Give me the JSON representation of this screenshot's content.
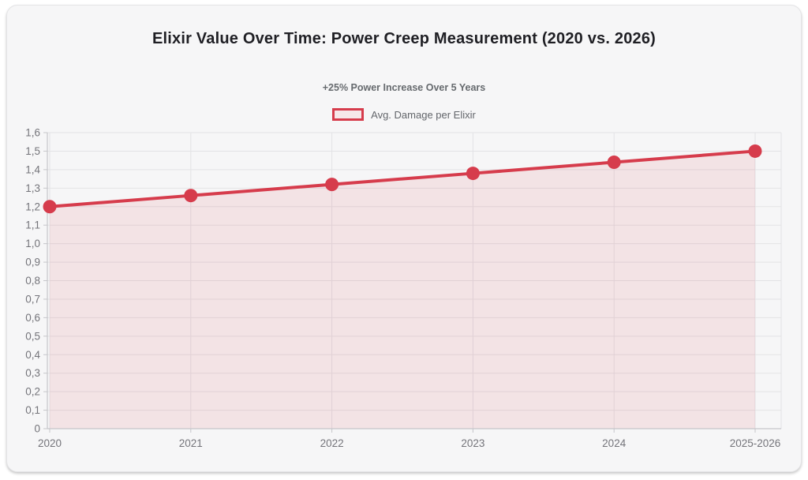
{
  "header": {
    "title": "Elixir Value Over Time: Power Creep Measurement (2020 vs. 2026)",
    "subtitle": "+25% Power Increase Over 5 Years"
  },
  "legend": {
    "label": "Avg. Damage per Elixir",
    "swatch_border_color": "#d63c4c",
    "swatch_fill_color": "#f6e8ea"
  },
  "colors": {
    "line": "#d63c4c",
    "area_fill": "rgba(214,60,76,0.10)",
    "grid": "#e3e3e5",
    "axis": "#c6c6ca",
    "tick_text": "#74747a",
    "card_background": "#f6f6f7"
  },
  "chart_data": {
    "type": "area",
    "title": "Elixir Value Over Time: Power Creep Measurement (2020 vs. 2026)",
    "subtitle": "+25% Power Increase Over 5 Years",
    "categories": [
      "2020",
      "2021",
      "2022",
      "2023",
      "2024",
      "2025-2026"
    ],
    "series": [
      {
        "name": "Avg. Damage per Elixir",
        "values": [
          1.2,
          1.26,
          1.32,
          1.38,
          1.44,
          1.5
        ]
      }
    ],
    "xlabel": "",
    "ylabel": "",
    "ylim": [
      0,
      1.6
    ],
    "y_tick_step": 0.1,
    "y_tick_labels": [
      "0",
      "0,1",
      "0,2",
      "0,3",
      "0,4",
      "0,5",
      "0,6",
      "0,7",
      "0,8",
      "0,9",
      "1,0",
      "1,1",
      "1,2",
      "1,3",
      "1,4",
      "1,5",
      "1,6"
    ],
    "grid": true,
    "legend_position": "top",
    "point_radius": 8.5,
    "line_width": 4
  }
}
